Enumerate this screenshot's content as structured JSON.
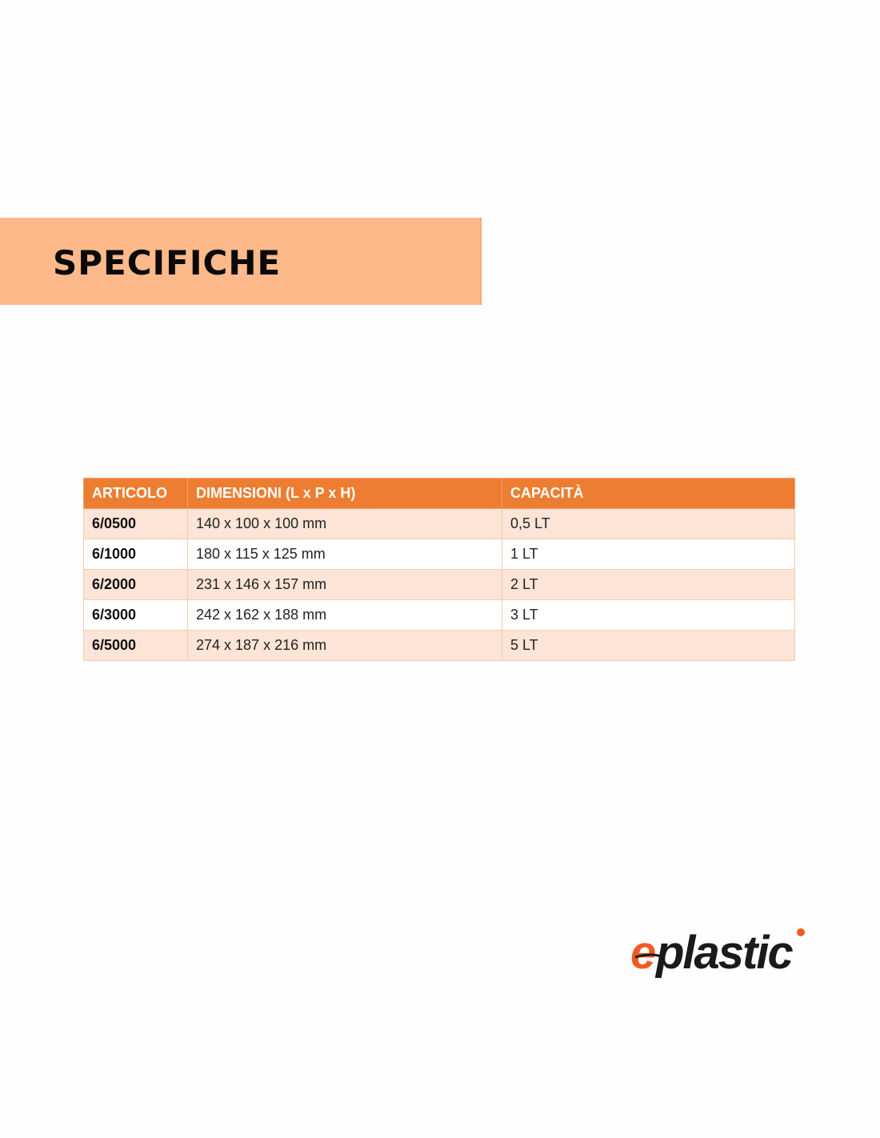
{
  "section": {
    "title": "SPECIFICHE"
  },
  "table": {
    "headers": [
      "ARTICOLO",
      "DIMENSIONI (L x P x H)",
      "CAPACITÀ"
    ],
    "rows": [
      [
        "6/0500",
        "140 x 100 x 100 mm",
        "0,5 LT"
      ],
      [
        "6/1000",
        "180 x 115 x 125 mm",
        "1 LT"
      ],
      [
        "6/2000",
        "231 x 146 x 157 mm",
        "2 LT"
      ],
      [
        "6/3000",
        "242 x 162 x 188 mm",
        "3 LT"
      ],
      [
        "6/5000",
        "274 x 187 x 216 mm",
        "5 LT"
      ]
    ]
  },
  "logo": {
    "text": "eplastic",
    "first_letter": "e",
    "rest": "plastic",
    "accent_color": "#f15a24",
    "text_color": "#1a1a1a"
  },
  "colors": {
    "band": "#fdb98a",
    "header": "#ed7d31",
    "row_alt": "#fce4d6"
  }
}
